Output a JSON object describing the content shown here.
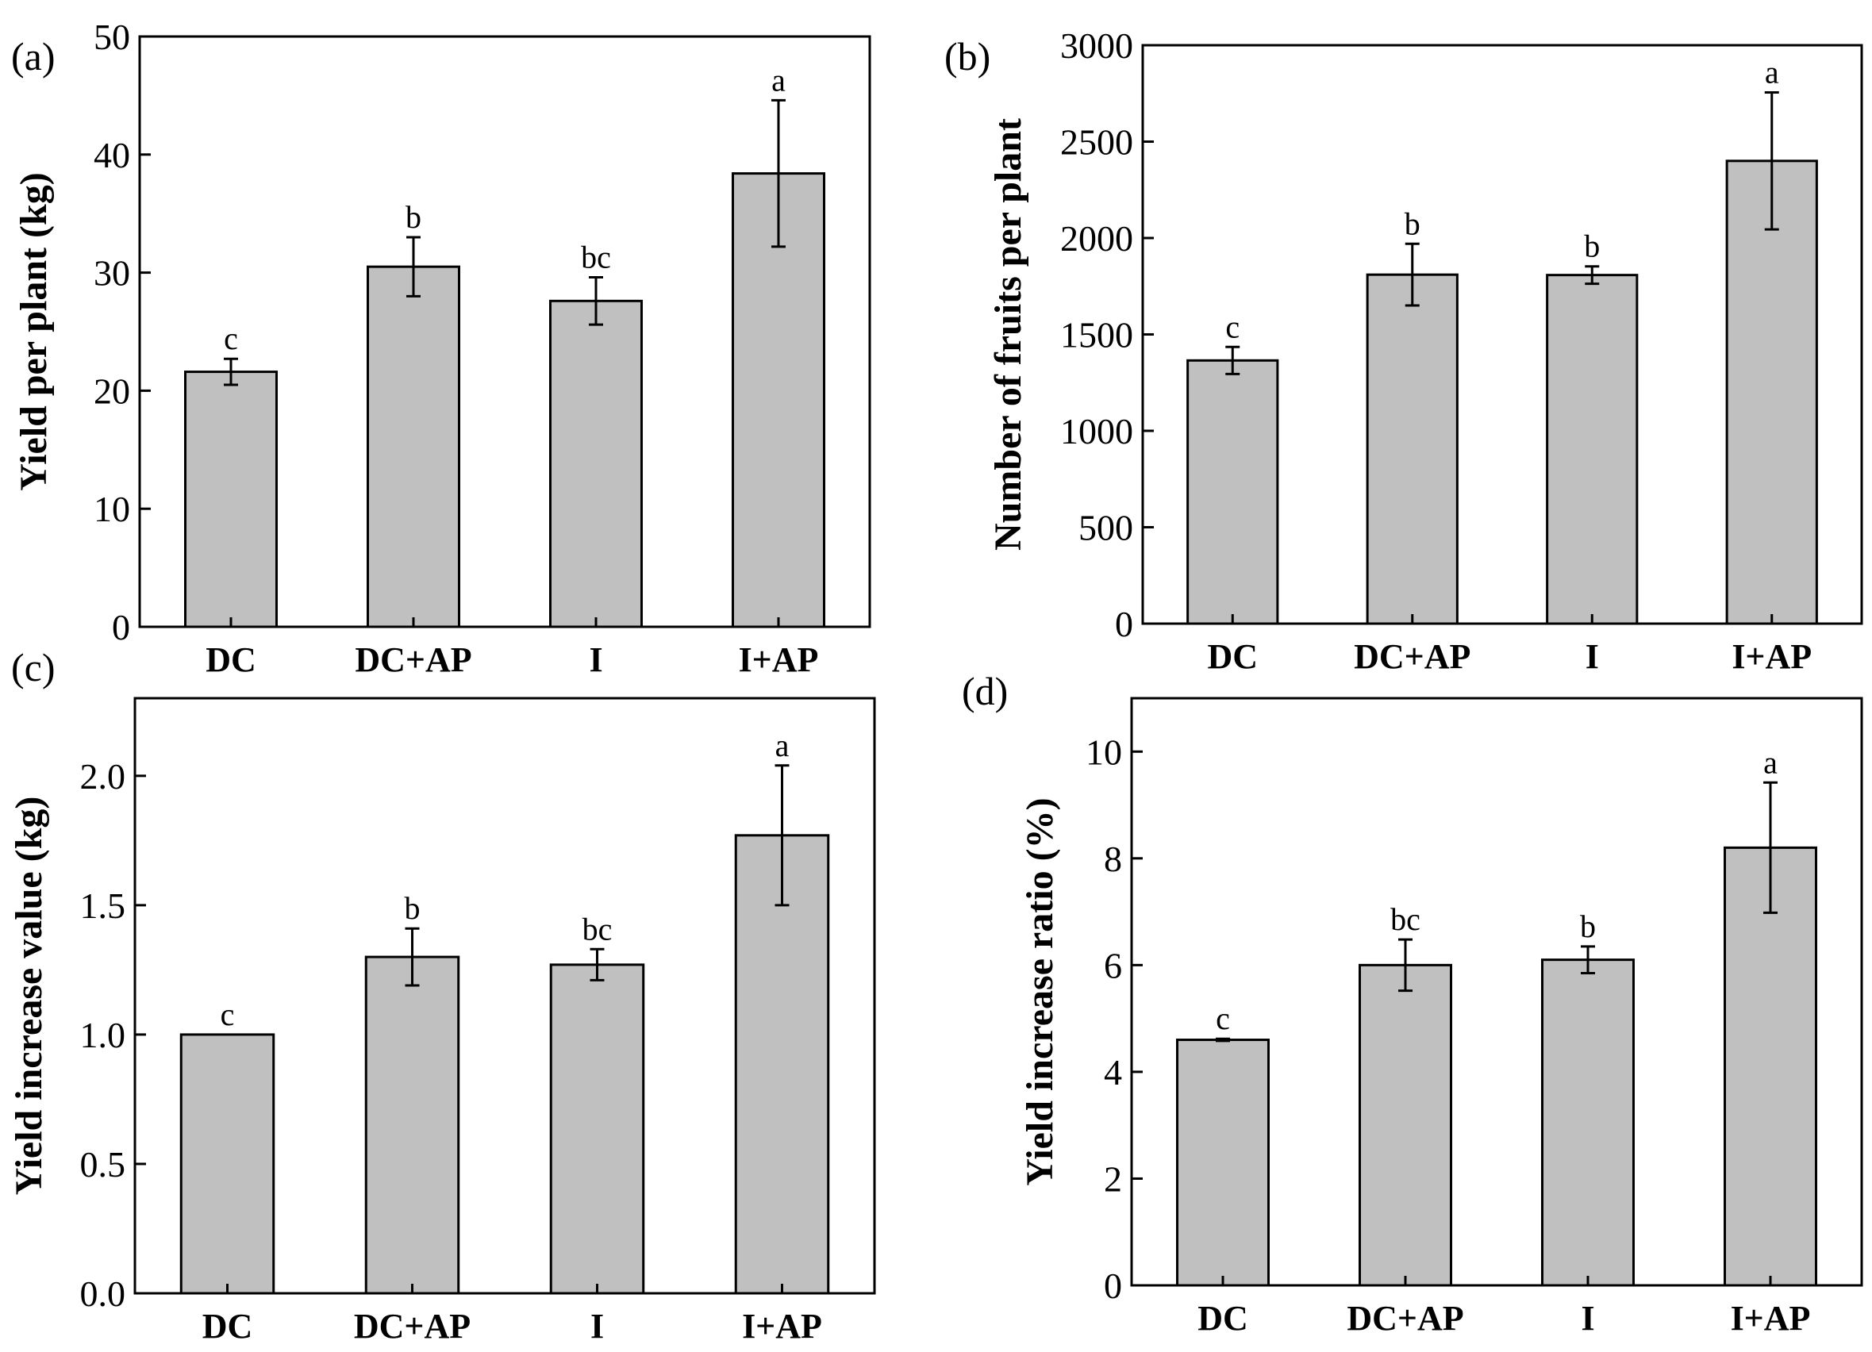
{
  "chart_data": [
    {
      "type": "bar",
      "panel_label": "(a)",
      "title": "",
      "xlabel": "",
      "ylabel": "Yield per plant (kg)",
      "ylim": [
        0,
        50
      ],
      "yticks": [
        0,
        10,
        20,
        30,
        40,
        50
      ],
      "ytick_labels": [
        "0",
        "10",
        "20",
        "30",
        "40",
        "50"
      ],
      "categories": [
        "DC",
        "DC+AP",
        "I",
        "I+AP"
      ],
      "values": [
        21.6,
        30.5,
        27.6,
        38.4
      ],
      "errors": [
        1.1,
        2.5,
        2.0,
        6.2
      ],
      "significance": [
        "c",
        "b",
        "bc",
        "a"
      ],
      "bar_color": "#c0c0c0"
    },
    {
      "type": "bar",
      "panel_label": "(b)",
      "title": "",
      "xlabel": "",
      "ylabel": "Number of fruits per plant",
      "ylim": [
        0,
        3000
      ],
      "yticks": [
        0,
        500,
        1000,
        1500,
        2000,
        2500,
        3000
      ],
      "ytick_labels": [
        "0",
        "500",
        "1000",
        "1500",
        "2000",
        "2500",
        "3000"
      ],
      "categories": [
        "DC",
        "DC+AP",
        "I",
        "I+AP"
      ],
      "values": [
        1365,
        1810,
        1808,
        2400
      ],
      "errors": [
        70,
        160,
        45,
        355
      ],
      "significance": [
        "c",
        "b",
        "b",
        "a"
      ],
      "bar_color": "#c0c0c0"
    },
    {
      "type": "bar",
      "panel_label": "(c)",
      "title": "",
      "xlabel": "",
      "ylabel": "Yield increase value (kg)",
      "ylim": [
        0,
        2.3
      ],
      "yticks": [
        0,
        0.5,
        1.0,
        1.5,
        2.0
      ],
      "ytick_labels": [
        "0.0",
        "0.5",
        "1.0",
        "1.5",
        "2.0"
      ],
      "categories": [
        "DC",
        "DC+AP",
        "I",
        "I+AP"
      ],
      "values": [
        1.0,
        1.3,
        1.27,
        1.77
      ],
      "errors": [
        0,
        0.11,
        0.06,
        0.27
      ],
      "significance": [
        "c",
        "b",
        "bc",
        "a"
      ],
      "bar_color": "#c0c0c0"
    },
    {
      "type": "bar",
      "panel_label": "(d)",
      "title": "",
      "xlabel": "",
      "ylabel": "Yield increase ratio (%)",
      "ylim": [
        0,
        11
      ],
      "yticks": [
        0,
        2,
        4,
        6,
        8,
        10
      ],
      "ytick_labels": [
        "0",
        "2",
        "4",
        "6",
        "8",
        "10"
      ],
      "categories": [
        "DC",
        "DC+AP",
        "I",
        "I+AP"
      ],
      "values": [
        4.6,
        6.0,
        6.1,
        8.2
      ],
      "errors": [
        0.02,
        0.48,
        0.25,
        1.22
      ],
      "significance": [
        "c",
        "bc",
        "b",
        "a"
      ],
      "bar_color": "#c0c0c0"
    }
  ]
}
